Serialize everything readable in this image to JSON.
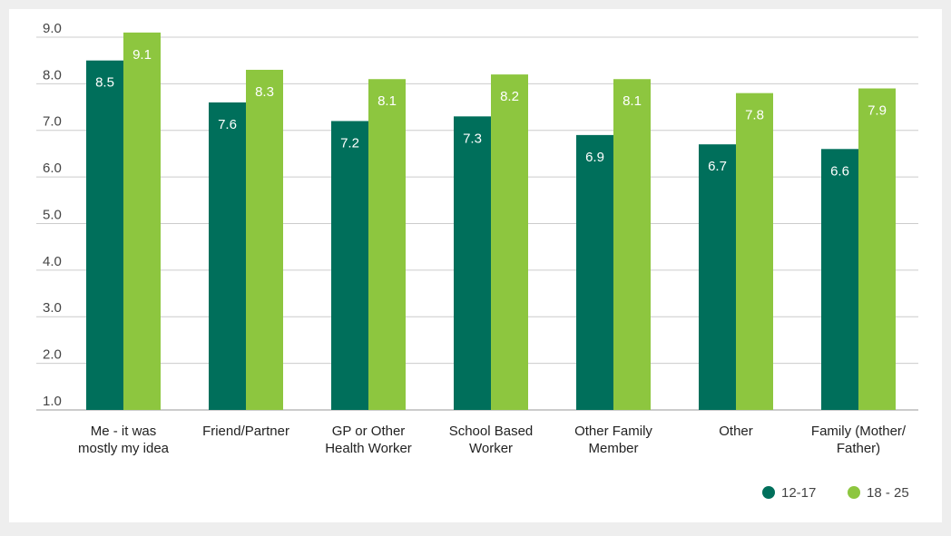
{
  "chart_data": {
    "type": "bar",
    "categories": [
      "Me - it was mostly my idea",
      "Friend/Partner",
      "GP or Other Health Worker",
      "School Based Worker",
      "Other Family Member",
      "Other",
      "Family (Mother/ Father)"
    ],
    "series": [
      {
        "name": "12-17",
        "color": "#006f5b",
        "values": [
          8.5,
          7.6,
          7.2,
          7.3,
          6.9,
          6.7,
          6.6
        ]
      },
      {
        "name": "18 - 25",
        "color": "#8dc63f",
        "values": [
          9.1,
          8.3,
          8.1,
          8.2,
          8.1,
          7.8,
          7.9
        ]
      }
    ],
    "ylim": [
      1,
      9.1
    ],
    "yticks": [
      {
        "value": 1,
        "label": "1.0"
      },
      {
        "value": 2,
        "label": "2.0"
      },
      {
        "value": 3,
        "label": "3.0"
      },
      {
        "value": 4,
        "label": "4.0"
      },
      {
        "value": 5,
        "label": "5.0"
      },
      {
        "value": 6,
        "label": "6.0"
      },
      {
        "value": 7,
        "label": "7.0"
      },
      {
        "value": 8,
        "label": "8.0"
      },
      {
        "value": 9,
        "label": "9.0"
      }
    ],
    "grid": true,
    "legend": "bottom-right"
  }
}
